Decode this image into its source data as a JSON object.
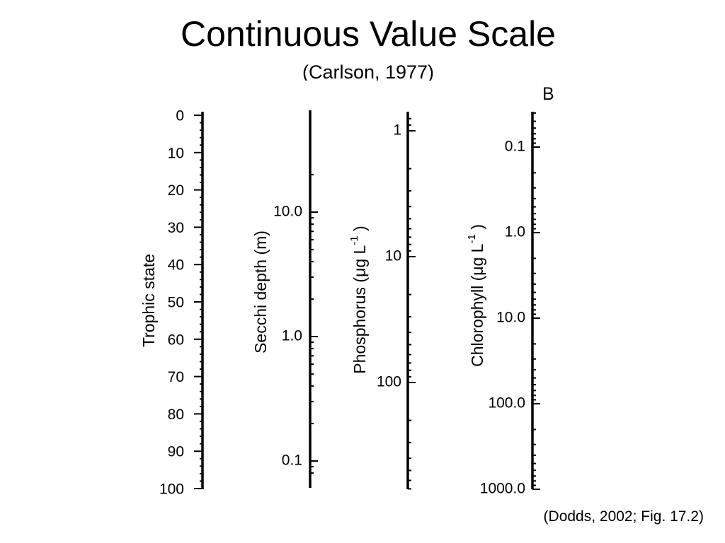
{
  "title": "Continuous Value Scale",
  "subtitle": "(Carlson, 1977)",
  "panel_label": "B",
  "citation": "(Dodds, 2002; Fig. 17.2)",
  "scales": [
    {
      "id": "trophic",
      "title": "Trophic state",
      "title_unit": "",
      "scale_type": "linear",
      "range": [
        0,
        100
      ],
      "labels": [
        {
          "value": 0,
          "text": "0"
        },
        {
          "value": 10,
          "text": "10"
        },
        {
          "value": 20,
          "text": "20"
        },
        {
          "value": 30,
          "text": "30"
        },
        {
          "value": 40,
          "text": "40"
        },
        {
          "value": 50,
          "text": "50"
        },
        {
          "value": 60,
          "text": "60"
        },
        {
          "value": 70,
          "text": "70"
        },
        {
          "value": 80,
          "text": "80"
        },
        {
          "value": 90,
          "text": "90"
        },
        {
          "value": 100,
          "text": "100"
        }
      ]
    },
    {
      "id": "secchi",
      "title": "Secchi depth (m)",
      "title_unit": "",
      "scale_type": "log",
      "direction": "decreasing",
      "labels": [
        {
          "value": 10.0,
          "text": "10.0"
        },
        {
          "value": 1.0,
          "text": "1.0"
        },
        {
          "value": 0.1,
          "text": "0.1"
        }
      ]
    },
    {
      "id": "phosphorus",
      "title": "Phosphorus (",
      "title_unit": "μg L",
      "title_exponent": "-1",
      "title_close": " )",
      "scale_type": "log",
      "direction": "increasing",
      "labels": [
        {
          "value": 1,
          "text": "1"
        },
        {
          "value": 10,
          "text": "10"
        },
        {
          "value": 100,
          "text": "100"
        }
      ]
    },
    {
      "id": "chlorophyll",
      "title": "Chlorophyll (",
      "title_unit": "μg L",
      "title_exponent": "-1",
      "title_close": " )",
      "scale_type": "log",
      "direction": "increasing",
      "labels": [
        {
          "value": 0.1,
          "text": "0.1"
        },
        {
          "value": 1.0,
          "text": "1.0"
        },
        {
          "value": 10.0,
          "text": "10.0"
        },
        {
          "value": 100.0,
          "text": "100.0"
        },
        {
          "value": 1000.0,
          "text": "1000.0"
        }
      ]
    }
  ]
}
